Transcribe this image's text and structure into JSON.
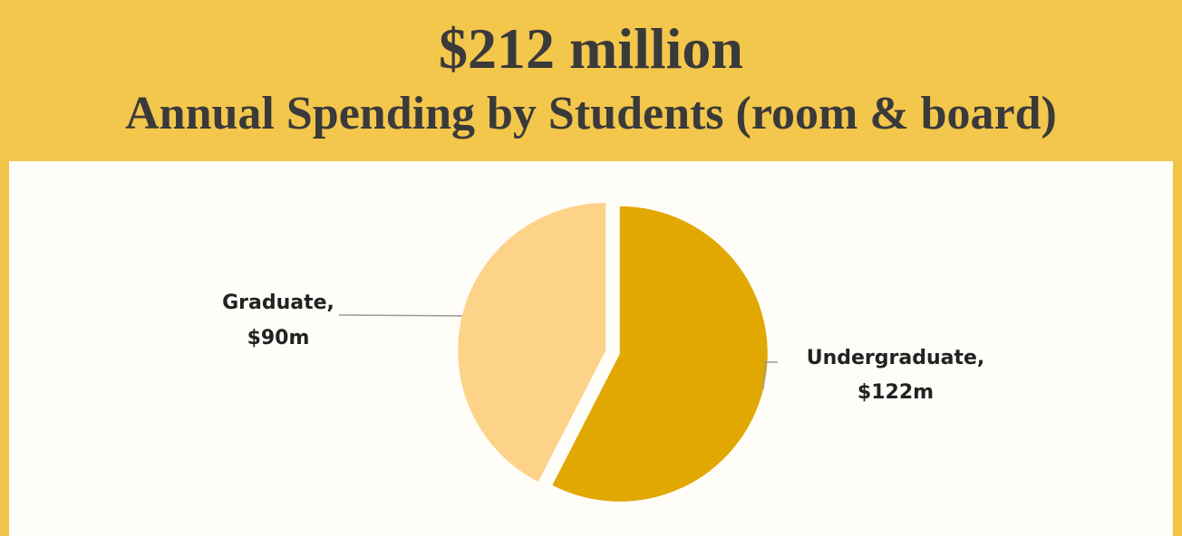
{
  "header": {
    "amount": "$212 million",
    "subtitle": "Annual Spending by Students (room & board)"
  },
  "colors": {
    "background": "#f2c54a",
    "panel": "#fffdf8",
    "undergraduate": "#e0a800",
    "graduate": "#fdd389",
    "leader": "#9b9b9b"
  },
  "chart_data": {
    "type": "pie",
    "title": "",
    "categories": [
      "Undergraduate",
      "Graduate"
    ],
    "values": [
      122,
      90
    ],
    "unit": "$m",
    "labels": [
      {
        "line1": "Undergraduate,",
        "line2": "$122m"
      },
      {
        "line1": "Graduate,",
        "line2": "$90m"
      }
    ],
    "exploded": true
  }
}
